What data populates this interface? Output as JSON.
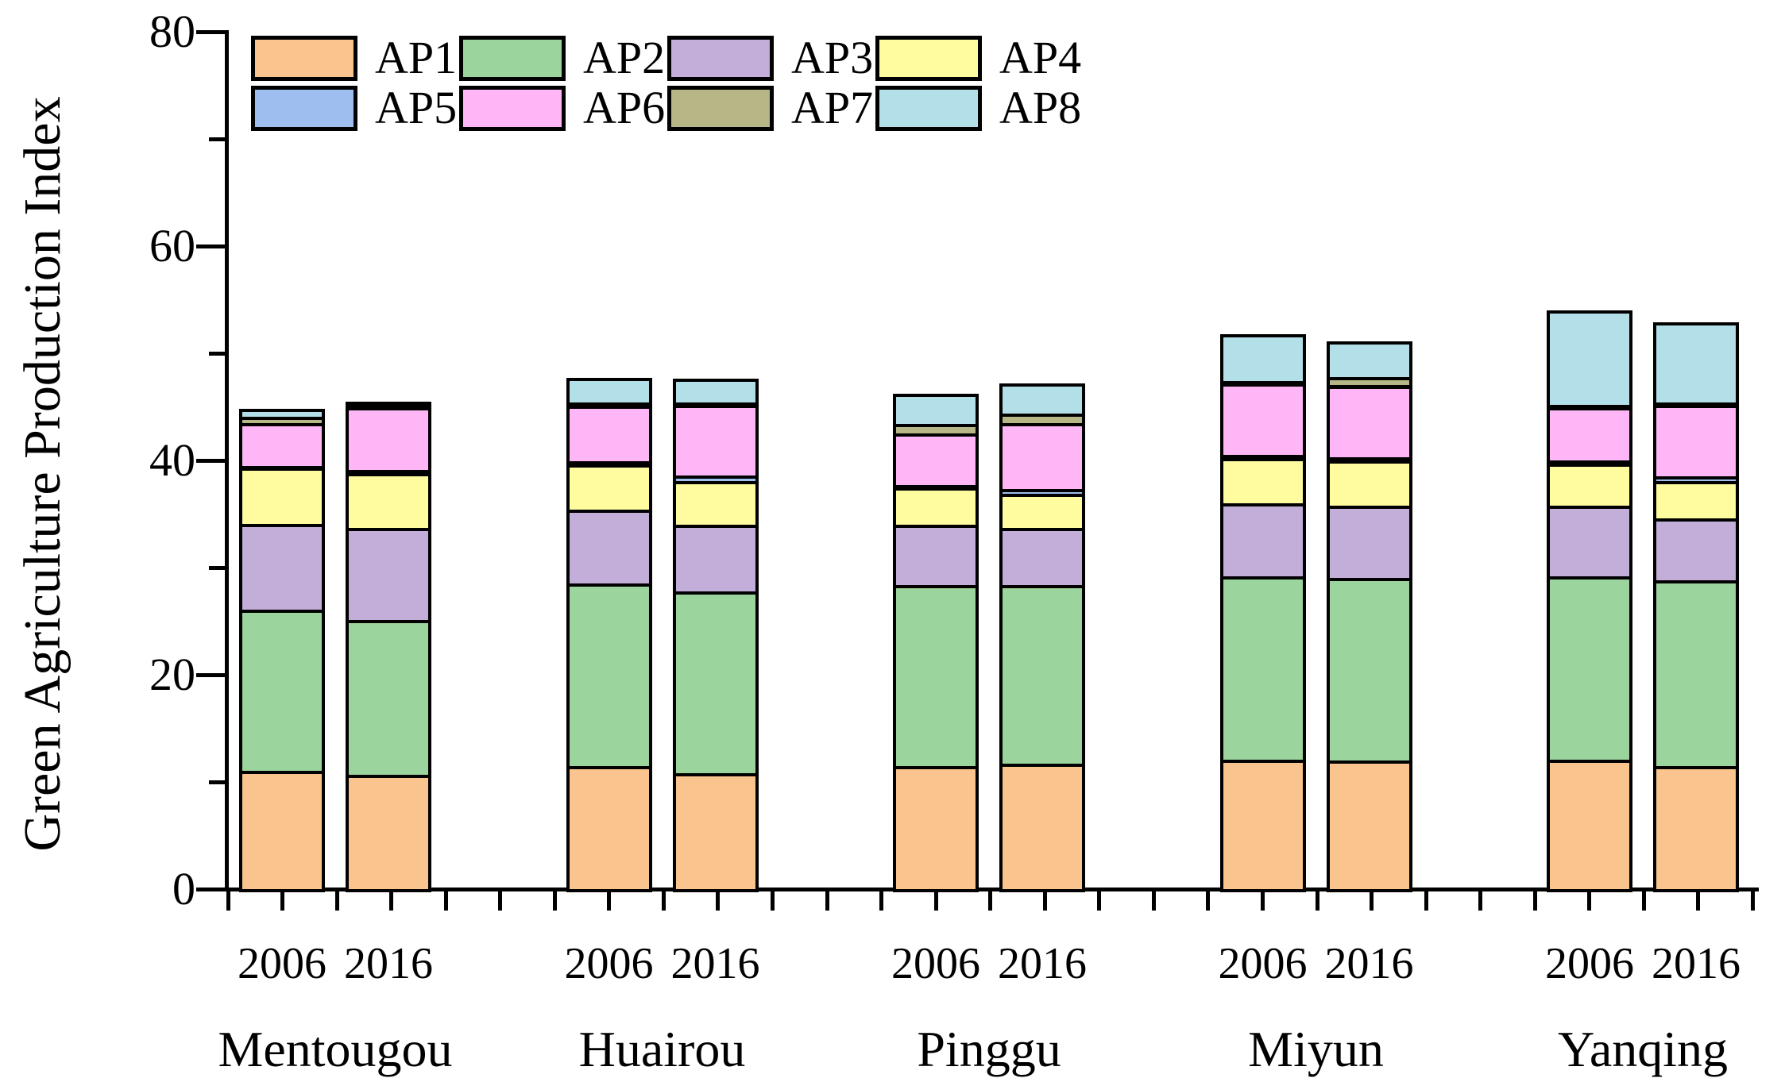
{
  "chart_data": {
    "type": "bar",
    "stacked": true,
    "title": "",
    "xlabel": "",
    "ylabel": "Green Agriculture Production Index",
    "ylim": [
      0,
      80
    ],
    "y_major_ticks": [
      0,
      20,
      40,
      60,
      80
    ],
    "y_minor_ticks": [
      10,
      30,
      50,
      70
    ],
    "grid": false,
    "legend_position": "top-left-inside",
    "categories": [
      "Mentougou",
      "Huairou",
      "Pinggu",
      "Miyun",
      "Yanqing"
    ],
    "years": [
      "2006",
      "2016"
    ],
    "series": [
      {
        "name": "AP1",
        "color": "#FAC48F"
      },
      {
        "name": "AP2",
        "color": "#9CD49E"
      },
      {
        "name": "AP3",
        "color": "#C2AED8"
      },
      {
        "name": "AP4",
        "color": "#FEFC9E"
      },
      {
        "name": "AP5",
        "color": "#9EBEEF"
      },
      {
        "name": "AP6",
        "color": "#FEB6F6"
      },
      {
        "name": "AP7",
        "color": "#B6B687"
      },
      {
        "name": "AP8",
        "color": "#B3E0E8"
      }
    ],
    "groups": [
      {
        "district": "Mentougou",
        "bars": [
          {
            "year": "2006",
            "values": [
              11.0,
              15.1,
              8.0,
              5.2,
              0.2,
              4.0,
              0.6,
              0.7
            ],
            "total": 44.8
          },
          {
            "year": "2016",
            "values": [
              10.7,
              14.4,
              8.6,
              5.1,
              0.3,
              5.9,
              0.15,
              0.25
            ],
            "total": 45.4
          }
        ]
      },
      {
        "district": "Huairou",
        "bars": [
          {
            "year": "2006",
            "values": [
              11.5,
              17.0,
              6.9,
              4.2,
              0.3,
              5.2,
              0.3,
              2.3
            ],
            "total": 47.7
          },
          {
            "year": "2016",
            "values": [
              10.8,
              17.0,
              6.2,
              4.1,
              0.5,
              6.6,
              0.2,
              2.2
            ],
            "total": 47.6
          }
        ]
      },
      {
        "district": "Pinggu",
        "bars": [
          {
            "year": "2006",
            "values": [
              11.5,
              16.9,
              5.6,
              3.5,
              0.2,
              4.8,
              0.9,
              2.8
            ],
            "total": 46.2
          },
          {
            "year": "2016",
            "values": [
              11.7,
              16.7,
              5.3,
              3.2,
              0.4,
              6.2,
              0.9,
              2.8
            ],
            "total": 47.2
          }
        ]
      },
      {
        "district": "Miyun",
        "bars": [
          {
            "year": "2006",
            "values": [
              12.1,
              17.1,
              6.8,
              4.2,
              0.3,
              6.7,
              0.2,
              4.4
            ],
            "total": 51.8
          },
          {
            "year": "2016",
            "values": [
              12.0,
              17.0,
              6.8,
              4.2,
              0.3,
              6.7,
              0.8,
              3.3
            ],
            "total": 51.1
          }
        ]
      },
      {
        "district": "Yanqing",
        "bars": [
          {
            "year": "2006",
            "values": [
              12.1,
              17.1,
              6.6,
              3.9,
              0.3,
              5.0,
              0.2,
              8.8
            ],
            "total": 54.0
          },
          {
            "year": "2016",
            "values": [
              11.5,
              17.3,
              5.8,
              3.5,
              0.4,
              6.7,
              0.2,
              7.5
            ],
            "total": 52.9
          }
        ]
      }
    ]
  }
}
